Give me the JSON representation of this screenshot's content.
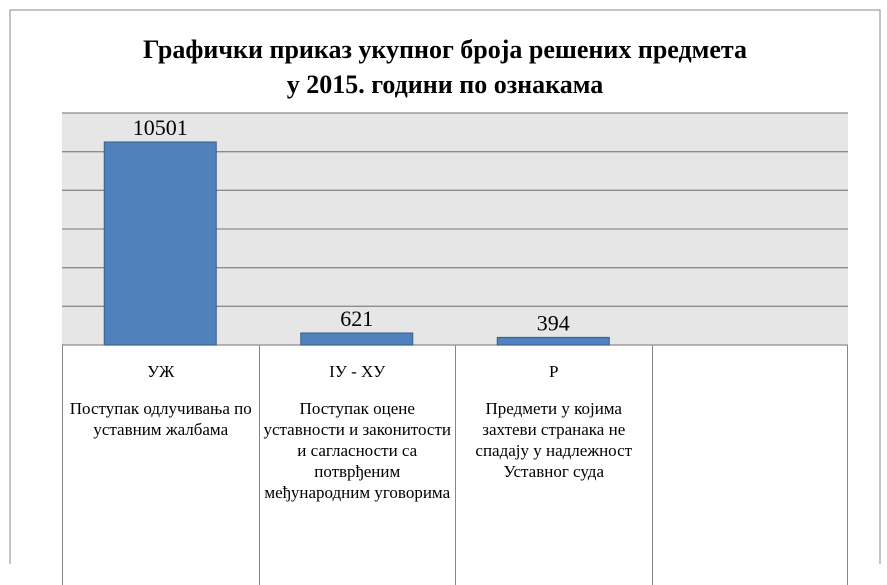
{
  "chart_data": {
    "type": "bar",
    "title": "Графички приказ укупног броја решених предмета",
    "subtitle": "у 2015. години по ознакама",
    "categories": [
      "УЖ",
      "IУ - ХУ",
      "Р"
    ],
    "descriptions": [
      "Поступак одлучивања по уставним жалбама",
      "Поступак оцене уставности и законитости и сагласности са потврђеним међународним уговорима",
      "Предмети у којима захтеви странака не спадају у надлежност Уставног суда"
    ],
    "values": [
      10501,
      621,
      394
    ],
    "color": "#4f81bd",
    "ylim": [
      0,
      12000
    ],
    "yticks": [
      0,
      2000,
      4000,
      6000,
      8000,
      10000,
      12000
    ],
    "grid": true
  }
}
